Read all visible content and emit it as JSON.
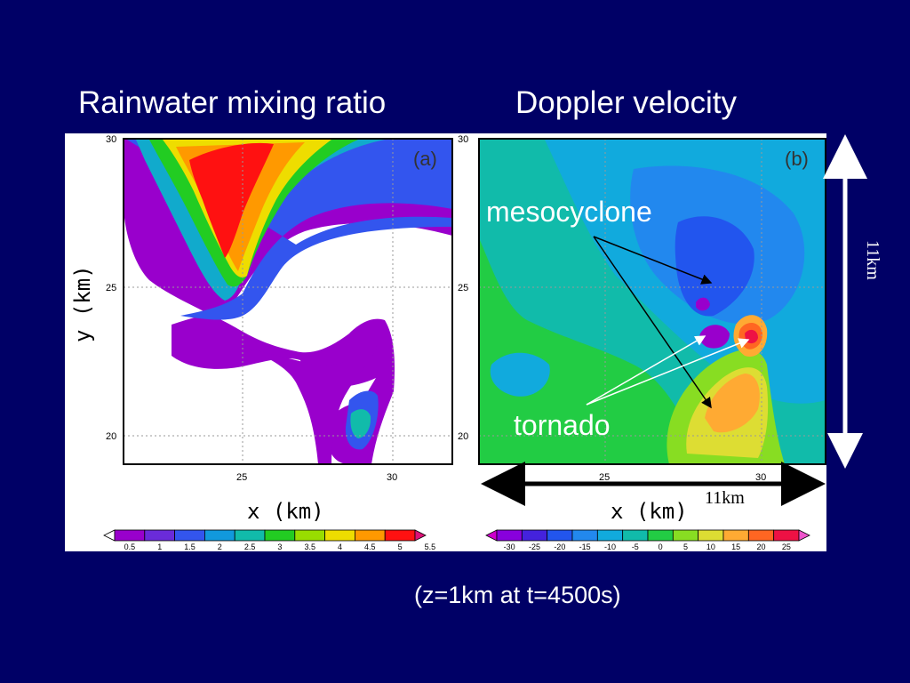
{
  "titles": {
    "left": "Rainwater mixing ratio",
    "right": "Doppler velocity"
  },
  "panel_a": {
    "label": "(a)",
    "x_ticks": [
      "25",
      "30"
    ],
    "y_ticks": [
      "30",
      "25",
      "20"
    ],
    "xlabel": "x (km)",
    "ylabel": "y (km)",
    "colorbar_labels": [
      "0.5",
      "1",
      "1.5",
      "2",
      "2.5",
      "3",
      "3.5",
      "4",
      "4.5",
      "5",
      "5.5"
    ],
    "colorbar_colors": [
      "#ffffff",
      "#9900cc",
      "#6a2bd9",
      "#3355ee",
      "#1199dd",
      "#11bbaa",
      "#22cc22",
      "#99dd00",
      "#eedd00",
      "#ff9900",
      "#ff1111",
      "#dd1177"
    ]
  },
  "panel_b": {
    "label": "(b)",
    "x_ticks": [
      "25",
      "30"
    ],
    "y_ticks": [
      "30",
      "25",
      "20"
    ],
    "xlabel": "x (km)",
    "colorbar_labels": [
      "-30",
      "-25",
      "-20",
      "-15",
      "-10",
      "-5",
      "0",
      "5",
      "10",
      "15",
      "20",
      "25"
    ],
    "colorbar_colors": [
      "#cc00cc",
      "#8800dd",
      "#4422dd",
      "#2255ee",
      "#2288ee",
      "#11aadd",
      "#11bbaa",
      "#22cc44",
      "#88dd22",
      "#dddd33",
      "#ffaa33",
      "#ff6622",
      "#ee1144",
      "#ee55cc"
    ]
  },
  "annotations": {
    "mesocyclone": "mesocyclone",
    "tornado": "tornado",
    "scale_horizontal": "11km",
    "scale_vertical": "11km"
  },
  "caption": "(z=1km at t=4500s)"
}
